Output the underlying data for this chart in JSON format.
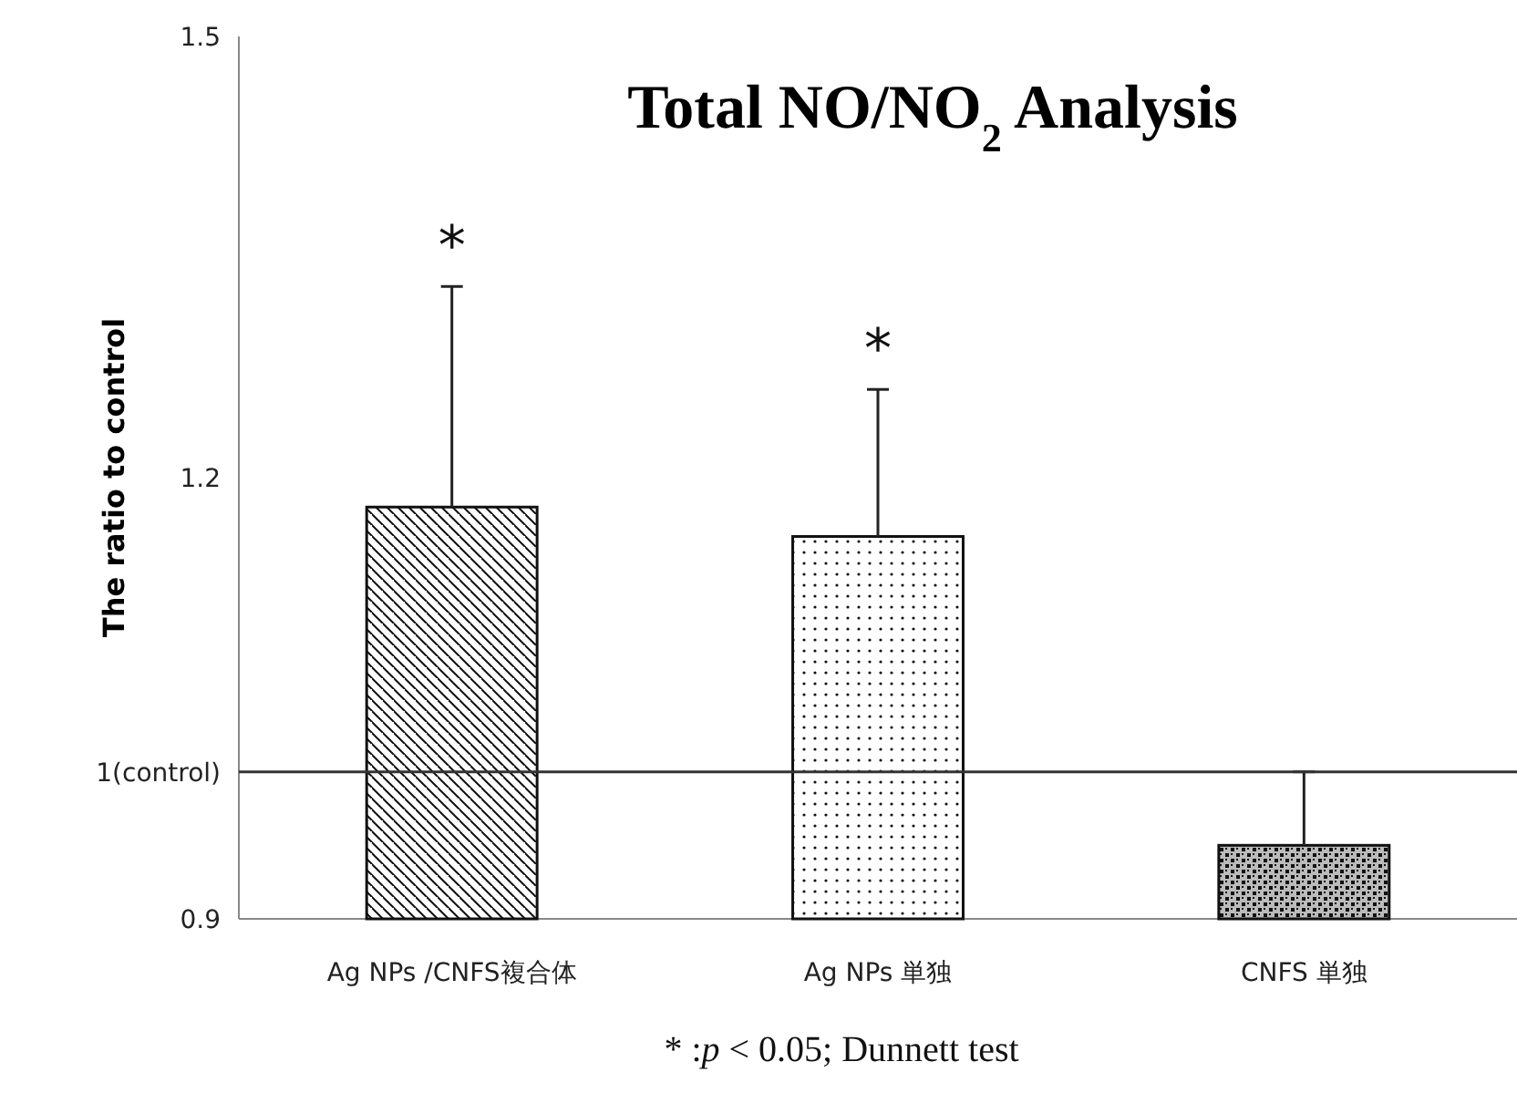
{
  "chart_data": {
    "type": "bar",
    "title": "Total NO/NO$_{2}$ Analysis",
    "ylabel": "The ratio to control",
    "categories": [
      "Ag NPs /CNFS複合体",
      "Ag NPs 単独",
      "CNFS 単独"
    ],
    "values": [
      1.18,
      1.16,
      0.95
    ],
    "errors": [
      [
        1.18,
        1.33
      ],
      [
        1.16,
        1.26
      ],
      [
        0.95,
        1.0
      ]
    ],
    "colors": [
      "#111111",
      "#111111",
      "#111111"
    ],
    "ylim": [
      0.9,
      1.5
    ],
    "yticks": [
      0.9,
      {
        "value": 1.0,
        "label": "1(control)"
      },
      1.2,
      1.5
    ],
    "ref_lines": [
      {
        "axis": "y",
        "value": 1.0,
        "color": "#333333"
      }
    ],
    "annotations": [
      "*",
      "*",
      "* :*p* < 0.05; Dunnett  test"
    ]
  }
}
